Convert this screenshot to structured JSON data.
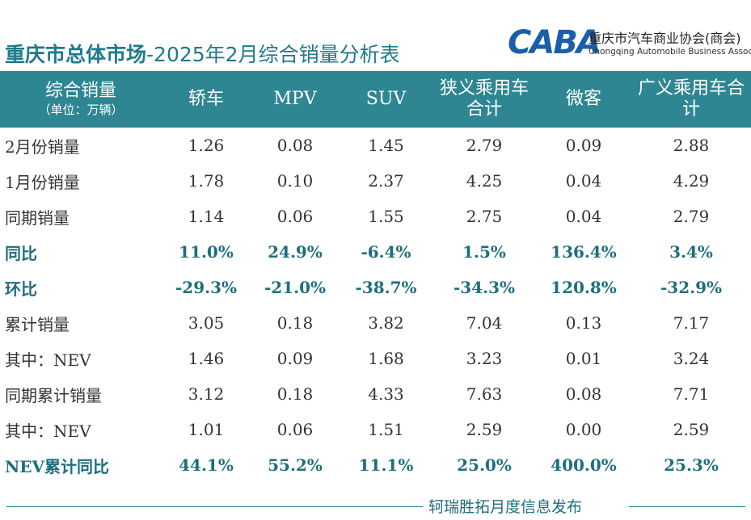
{
  "header": {
    "title_bold": "重庆市总体市场",
    "title_rest": "-2025年2月综合销量分析表"
  },
  "logo": {
    "mark": "CABA",
    "name_cn": "重庆市汽车商业协会(商会)",
    "name_en": "Chongqing Automobile Business Association"
  },
  "table": {
    "corner": {
      "label": "综合销量",
      "unit": "（单位：万辆）"
    },
    "columns": [
      "轿车",
      "MPV",
      "SUV",
      "狭义乘用车合计",
      "微客",
      "广义乘用车合计"
    ],
    "rows": [
      {
        "label": "2月份销量",
        "type": "value",
        "cells": [
          "1.26",
          "0.08",
          "1.45",
          "2.79",
          "0.09",
          "2.88"
        ]
      },
      {
        "label": "1月份销量",
        "type": "value",
        "cells": [
          "1.78",
          "0.10",
          "2.37",
          "4.25",
          "0.04",
          "4.29"
        ]
      },
      {
        "label": "同期销量",
        "type": "value",
        "cells": [
          "1.14",
          "0.06",
          "1.55",
          "2.75",
          "0.04",
          "2.79"
        ]
      },
      {
        "label": "同比",
        "type": "pct",
        "cells": [
          "11.0%",
          "24.9%",
          "-6.4%",
          "1.5%",
          "136.4%",
          "3.4%"
        ]
      },
      {
        "label": "环比",
        "type": "pct",
        "cells": [
          "-29.3%",
          "-21.0%",
          "-38.7%",
          "-34.3%",
          "120.8%",
          "-32.9%"
        ]
      },
      {
        "label": "累计销量",
        "type": "value",
        "cells": [
          "3.05",
          "0.18",
          "3.82",
          "7.04",
          "0.13",
          "7.17"
        ]
      },
      {
        "label": "其中：NEV",
        "type": "value",
        "cells": [
          "1.46",
          "0.09",
          "1.68",
          "3.23",
          "0.01",
          "3.24"
        ]
      },
      {
        "label": "同期累计销量",
        "type": "value",
        "cells": [
          "3.12",
          "0.18",
          "4.33",
          "7.63",
          "0.08",
          "7.71"
        ]
      },
      {
        "label": "其中：NEV",
        "type": "value",
        "cells": [
          "1.01",
          "0.06",
          "1.51",
          "2.59",
          "0.00",
          "2.59"
        ]
      },
      {
        "label": "NEV累计同比",
        "type": "pct",
        "cells": [
          "44.1%",
          "55.2%",
          "11.1%",
          "25.0%",
          "400.0%",
          "25.3%"
        ]
      }
    ]
  },
  "footer": {
    "source": "轲瑞胜拓月度信息发布"
  },
  "colors": {
    "header_bg": "#2e8693",
    "accent": "#1e6f7e"
  }
}
